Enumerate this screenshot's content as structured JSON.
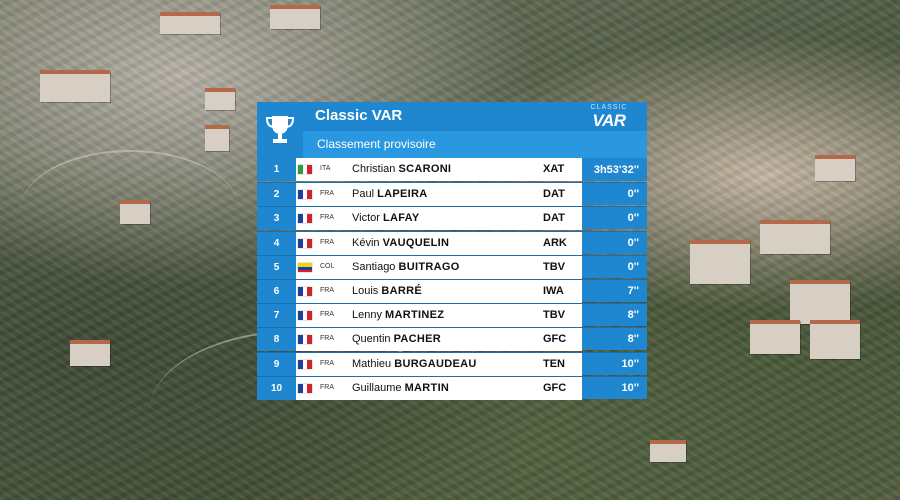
{
  "board": {
    "title": "Classic VAR",
    "subtitle": "Classement provisoire",
    "logo_small": "CLASSIC",
    "logo_big": "VAR",
    "trophy_icon": "trophy-icon",
    "accent_color": "#1f86d0"
  },
  "rows": [
    {
      "pos": "1",
      "nat": "ITA",
      "flag": "ita",
      "first": "Christian",
      "last": "SCARONI",
      "team": "XAT",
      "time": "3h53'32''"
    },
    {
      "pos": "2",
      "nat": "FRA",
      "flag": "fra",
      "first": "Paul",
      "last": "LAPEIRA",
      "team": "DAT",
      "time": "0''"
    },
    {
      "pos": "3",
      "nat": "FRA",
      "flag": "fra",
      "first": "Victor",
      "last": "LAFAY",
      "team": "DAT",
      "time": "0''"
    },
    {
      "pos": "4",
      "nat": "FRA",
      "flag": "fra",
      "first": "Kévin",
      "last": "VAUQUELIN",
      "team": "ARK",
      "time": "0''"
    },
    {
      "pos": "5",
      "nat": "COL",
      "flag": "col",
      "first": "Santiago",
      "last": "BUITRAGO",
      "team": "TBV",
      "time": "0''"
    },
    {
      "pos": "6",
      "nat": "FRA",
      "flag": "fra",
      "first": "Louis",
      "last": "BARRÉ",
      "team": "IWA",
      "time": "7''"
    },
    {
      "pos": "7",
      "nat": "FRA",
      "flag": "fra",
      "first": "Lenny",
      "last": "MARTINEZ",
      "team": "TBV",
      "time": "8''"
    },
    {
      "pos": "8",
      "nat": "FRA",
      "flag": "fra",
      "first": "Quentin",
      "last": "PACHER",
      "team": "GFC",
      "time": "8''"
    },
    {
      "pos": "9",
      "nat": "FRA",
      "flag": "fra",
      "first": "Mathieu",
      "last": "BURGAUDEAU",
      "team": "TEN",
      "time": "10''"
    },
    {
      "pos": "10",
      "nat": "FRA",
      "flag": "fra",
      "first": "Guillaume",
      "last": "MARTIN",
      "team": "GFC",
      "time": "10''"
    }
  ]
}
